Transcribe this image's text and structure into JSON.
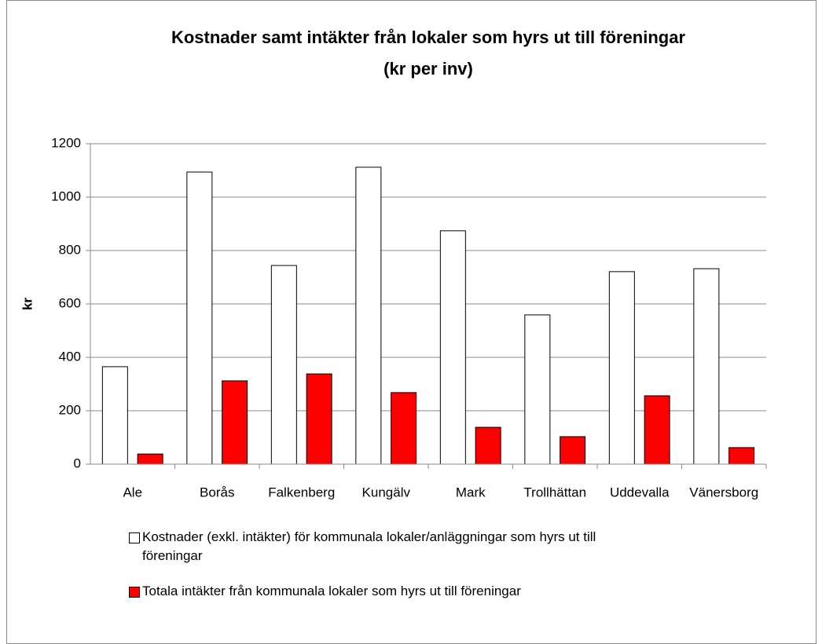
{
  "chart_data": {
    "type": "bar",
    "title": "Kostnader samt intäkter från lokaler som hyrs ut till föreningar",
    "subtitle": "(kr per inv)",
    "y_label": "kr",
    "categories": [
      "Ale",
      "Borås",
      "Falkenberg",
      "Kungälv",
      "Mark",
      "Trollhättan",
      "Uddevalla",
      "Vänersborg"
    ],
    "series": [
      {
        "name": "Kostnader (exkl. intäkter) för kommunala lokaler/anläggningar som hyrs ut till föreningar",
        "color": "#ffffff",
        "values": [
          365,
          1094,
          744,
          1112,
          874,
          559,
          721,
          732
        ]
      },
      {
        "name": "Totala intäkter från kommunala lokaler som hyrs ut till föreningar",
        "color": "#ff0000",
        "values": [
          38,
          312,
          338,
          268,
          138,
          103,
          256,
          62
        ]
      }
    ],
    "ylim": [
      0,
      1200
    ],
    "yticks": [
      0,
      200,
      400,
      600,
      800,
      1000,
      1200
    ],
    "grid": true
  }
}
